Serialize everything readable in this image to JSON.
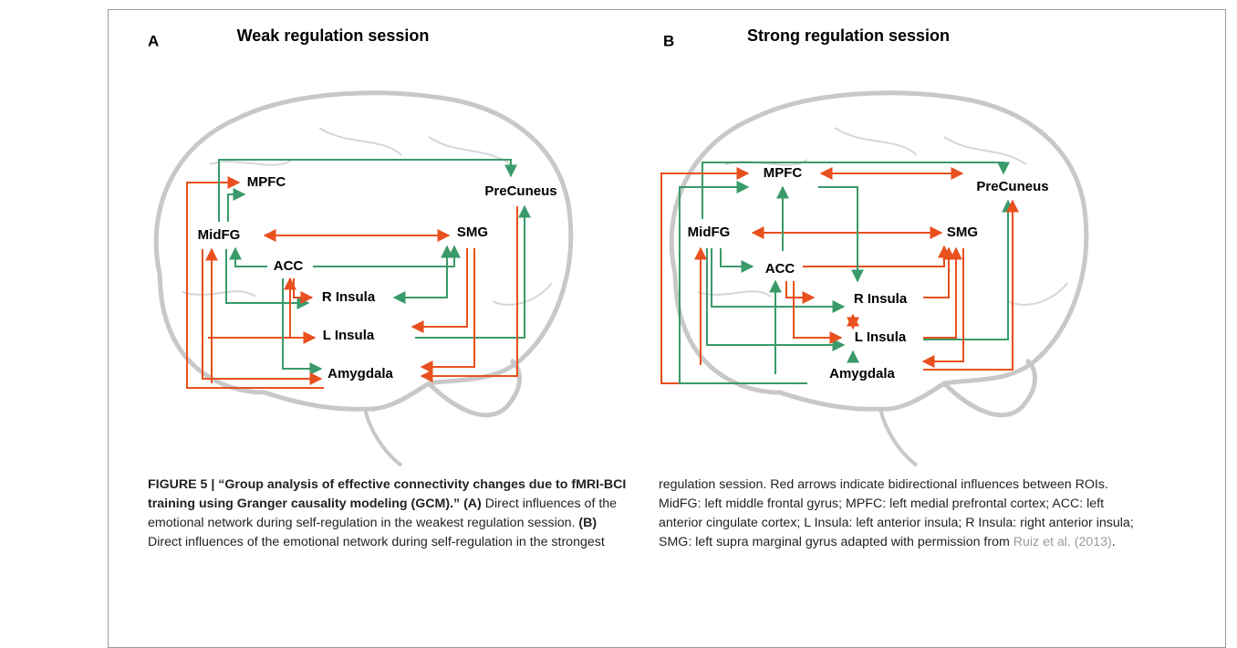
{
  "panels": [
    {
      "letter": "A",
      "title": "Weak regulation session",
      "nodes": [
        "MPFC",
        "PreCuneus",
        "MidFG",
        "SMG",
        "ACC",
        "R Insula",
        "L Insula",
        "Amygdala"
      ]
    },
    {
      "letter": "B",
      "title": "Strong regulation session",
      "nodes": [
        "MPFC",
        "PreCuneus",
        "MidFG",
        "SMG",
        "ACC",
        "R Insula",
        "L Insula",
        "Amygdala"
      ]
    }
  ],
  "caption": {
    "label": "FIGURE 5 | “Group analysis of effective connectivity changes due to fMRI-BCI training using Granger causality modeling (GCM).”",
    "a_marker": "(A)",
    "a_text": "Direct influences of the emotional network during self-regulation in the weakest regulation session.",
    "b_marker": "(B)",
    "b_text": "Direct influences of the emotional network during self-regulation in the strongest regulation session. Red arrows indicate bidirectional influences between ROIs. MidFG: left middle frontal gyrus; MPFC: left medial prefrontal cortex; ACC: left anterior cingulate cortex; L Insula: left anterior insula; R Insula: right anterior insula; SMG: left supra marginal gyrus adapted with permission from",
    "citation": "Ruiz et al. (2013)",
    "end": "."
  }
}
